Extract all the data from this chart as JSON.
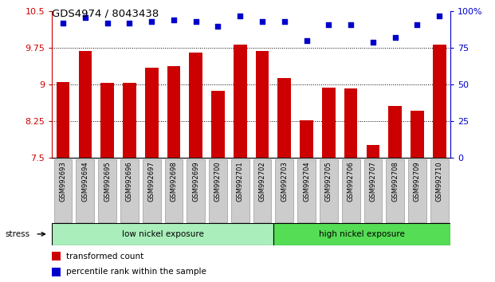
{
  "title": "GDS4974 / 8043438",
  "categories": [
    "GSM992693",
    "GSM992694",
    "GSM992695",
    "GSM992696",
    "GSM992697",
    "GSM992698",
    "GSM992699",
    "GSM992700",
    "GSM992701",
    "GSM992702",
    "GSM992703",
    "GSM992704",
    "GSM992705",
    "GSM992706",
    "GSM992707",
    "GSM992708",
    "GSM992709",
    "GSM992710"
  ],
  "bar_values": [
    9.05,
    9.68,
    9.04,
    9.04,
    9.35,
    9.38,
    9.65,
    8.87,
    9.82,
    9.68,
    9.14,
    8.27,
    8.93,
    8.92,
    7.77,
    8.56,
    8.46,
    9.82
  ],
  "dot_values": [
    92,
    96,
    92,
    92,
    93,
    94,
    93,
    90,
    97,
    93,
    93,
    80,
    91,
    91,
    79,
    82,
    91,
    97
  ],
  "ylim_left": [
    7.5,
    10.5
  ],
  "ylim_right": [
    0,
    100
  ],
  "yticks_left": [
    7.5,
    8.25,
    9.0,
    9.75,
    10.5
  ],
  "ytick_left_labels": [
    "7.5",
    "8.25",
    "9",
    "9.75",
    "10.5"
  ],
  "yticks_right": [
    0,
    25,
    50,
    75,
    100
  ],
  "ytick_right_labels": [
    "0",
    "25",
    "50",
    "75",
    "100%"
  ],
  "bar_color": "#cc0000",
  "dot_color": "#0000cc",
  "background_color": "#ffffff",
  "low_group_label": "low nickel exposure",
  "high_group_label": "high nickel exposure",
  "low_group_count": 10,
  "high_group_count": 8,
  "stress_label": "stress",
  "legend_bar_label": "transformed count",
  "legend_dot_label": "percentile rank within the sample",
  "low_color": "#aaeebb",
  "high_color": "#55dd55",
  "label_bg_color": "#cccccc",
  "label_border_color": "#999999",
  "grid_dotted_vals": [
    8.25,
    9.0,
    9.75
  ]
}
